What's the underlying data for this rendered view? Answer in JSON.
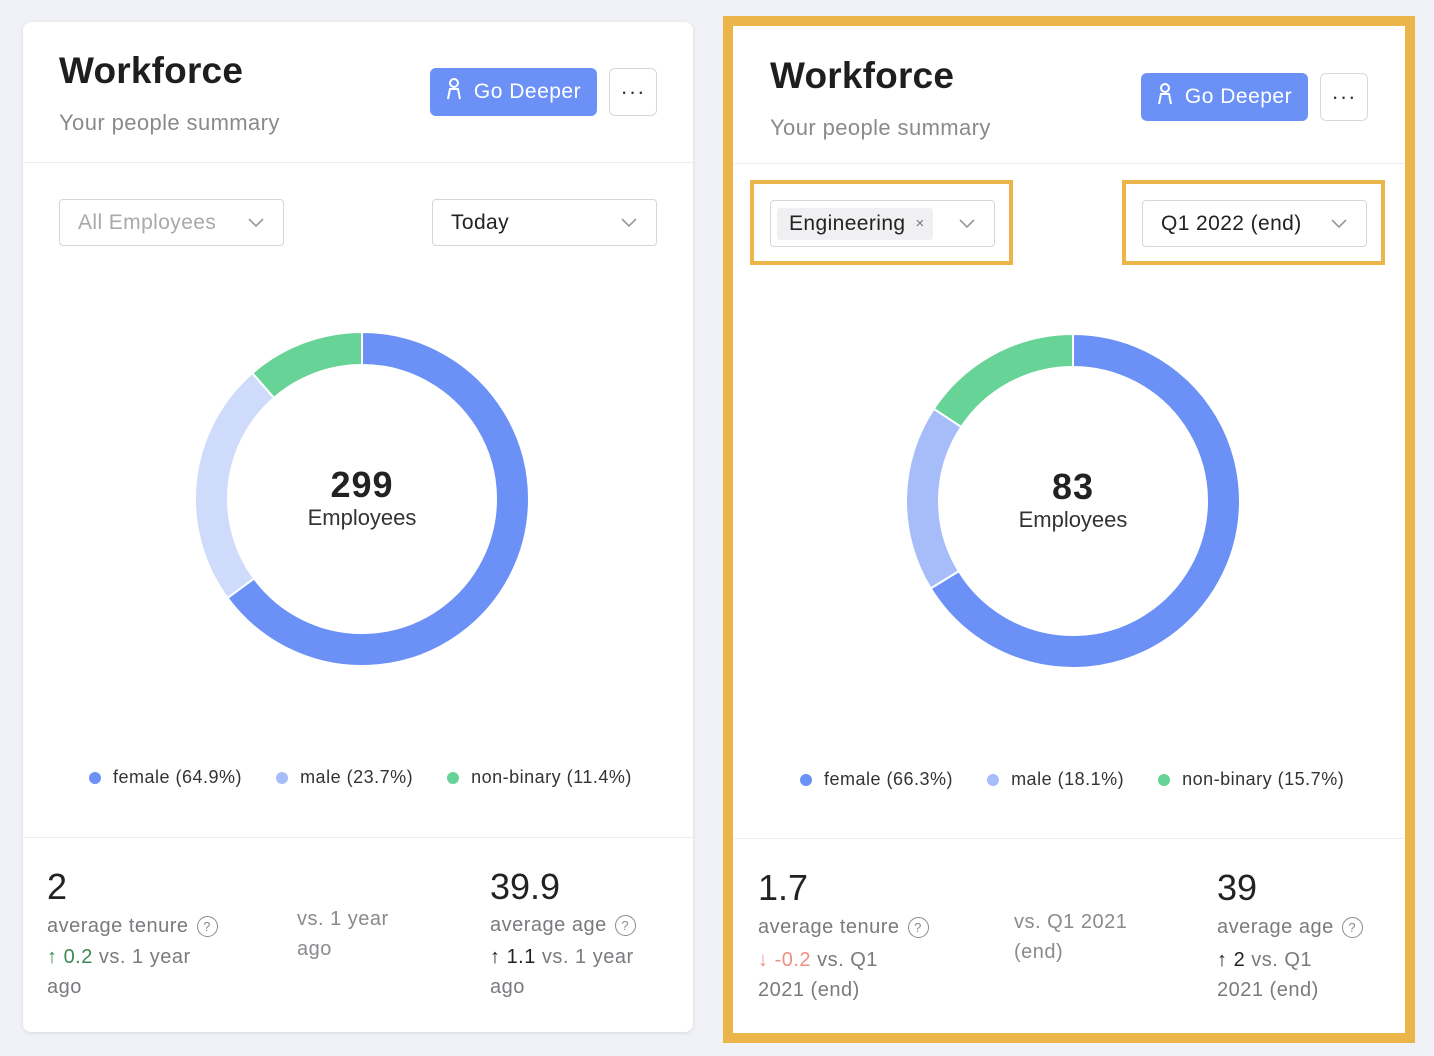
{
  "colors": {
    "accent": "#6b91f7",
    "female": "#6b91f7",
    "male_left": "#cedbfb",
    "male_right": "#a7bdf9",
    "non_binary": "#67d396",
    "highlight": "#ecb54a"
  },
  "left_card": {
    "title": "Workforce",
    "subtitle": "Your people summary",
    "go_deeper_label": "Go Deeper",
    "more_label": "···",
    "filter_group": "All Employees",
    "filter_date": "Today",
    "count": "299",
    "count_label": "Employees",
    "legend": [
      {
        "label": "female (64.9%)",
        "icon": "dot"
      },
      {
        "label": "male (23.7%)",
        "icon": "dot"
      },
      {
        "label": "non-binary (11.4%)",
        "icon": "dot"
      }
    ],
    "tenure": {
      "value": "2",
      "label": "average tenure",
      "arrow": "↑",
      "delta": "0.2",
      "delta_suffix": " vs. 1 year",
      "delta_line2": "ago"
    },
    "middle_note_1": "vs. 1 year",
    "middle_note_2": "ago",
    "age": {
      "value": "39.9",
      "label": "average age",
      "arrow": "↑",
      "delta": "1.1",
      "delta_suffix": " vs. 1 year",
      "delta_line2": "ago"
    }
  },
  "right_card": {
    "title": "Workforce",
    "subtitle": "Your people summary",
    "go_deeper_label": "Go Deeper",
    "more_label": "···",
    "filter_tag": "Engineering",
    "filter_tag_remove": "×",
    "filter_date": "Q1 2022 (end)",
    "count": "83",
    "count_label": "Employees",
    "legend": [
      {
        "label": "female (66.3%)",
        "icon": "dot"
      },
      {
        "label": "male (18.1%)",
        "icon": "dot"
      },
      {
        "label": "non-binary (15.7%)",
        "icon": "dot"
      }
    ],
    "tenure": {
      "value": "1.7",
      "label": "average tenure",
      "arrow": "↓",
      "delta": "-0.2",
      "delta_suffix": " vs. Q1",
      "delta_line2": "2021 (end)"
    },
    "middle_note_1": "vs. Q1 2021",
    "middle_note_2": "(end)",
    "age": {
      "value": "39",
      "label": "average age",
      "arrow": "↑",
      "delta": "2",
      "delta_suffix": " vs. Q1",
      "delta_line2": "2021 (end)"
    }
  },
  "chart_data": [
    {
      "type": "pie",
      "categories": [
        "female",
        "male",
        "non-binary"
      ],
      "values": [
        64.9,
        23.7,
        11.4
      ],
      "total": 299,
      "center_label": "Employees"
    },
    {
      "type": "pie",
      "categories": [
        "female",
        "male",
        "non-binary"
      ],
      "values": [
        66.3,
        18.1,
        15.7
      ],
      "total": 83,
      "center_label": "Employees"
    }
  ]
}
